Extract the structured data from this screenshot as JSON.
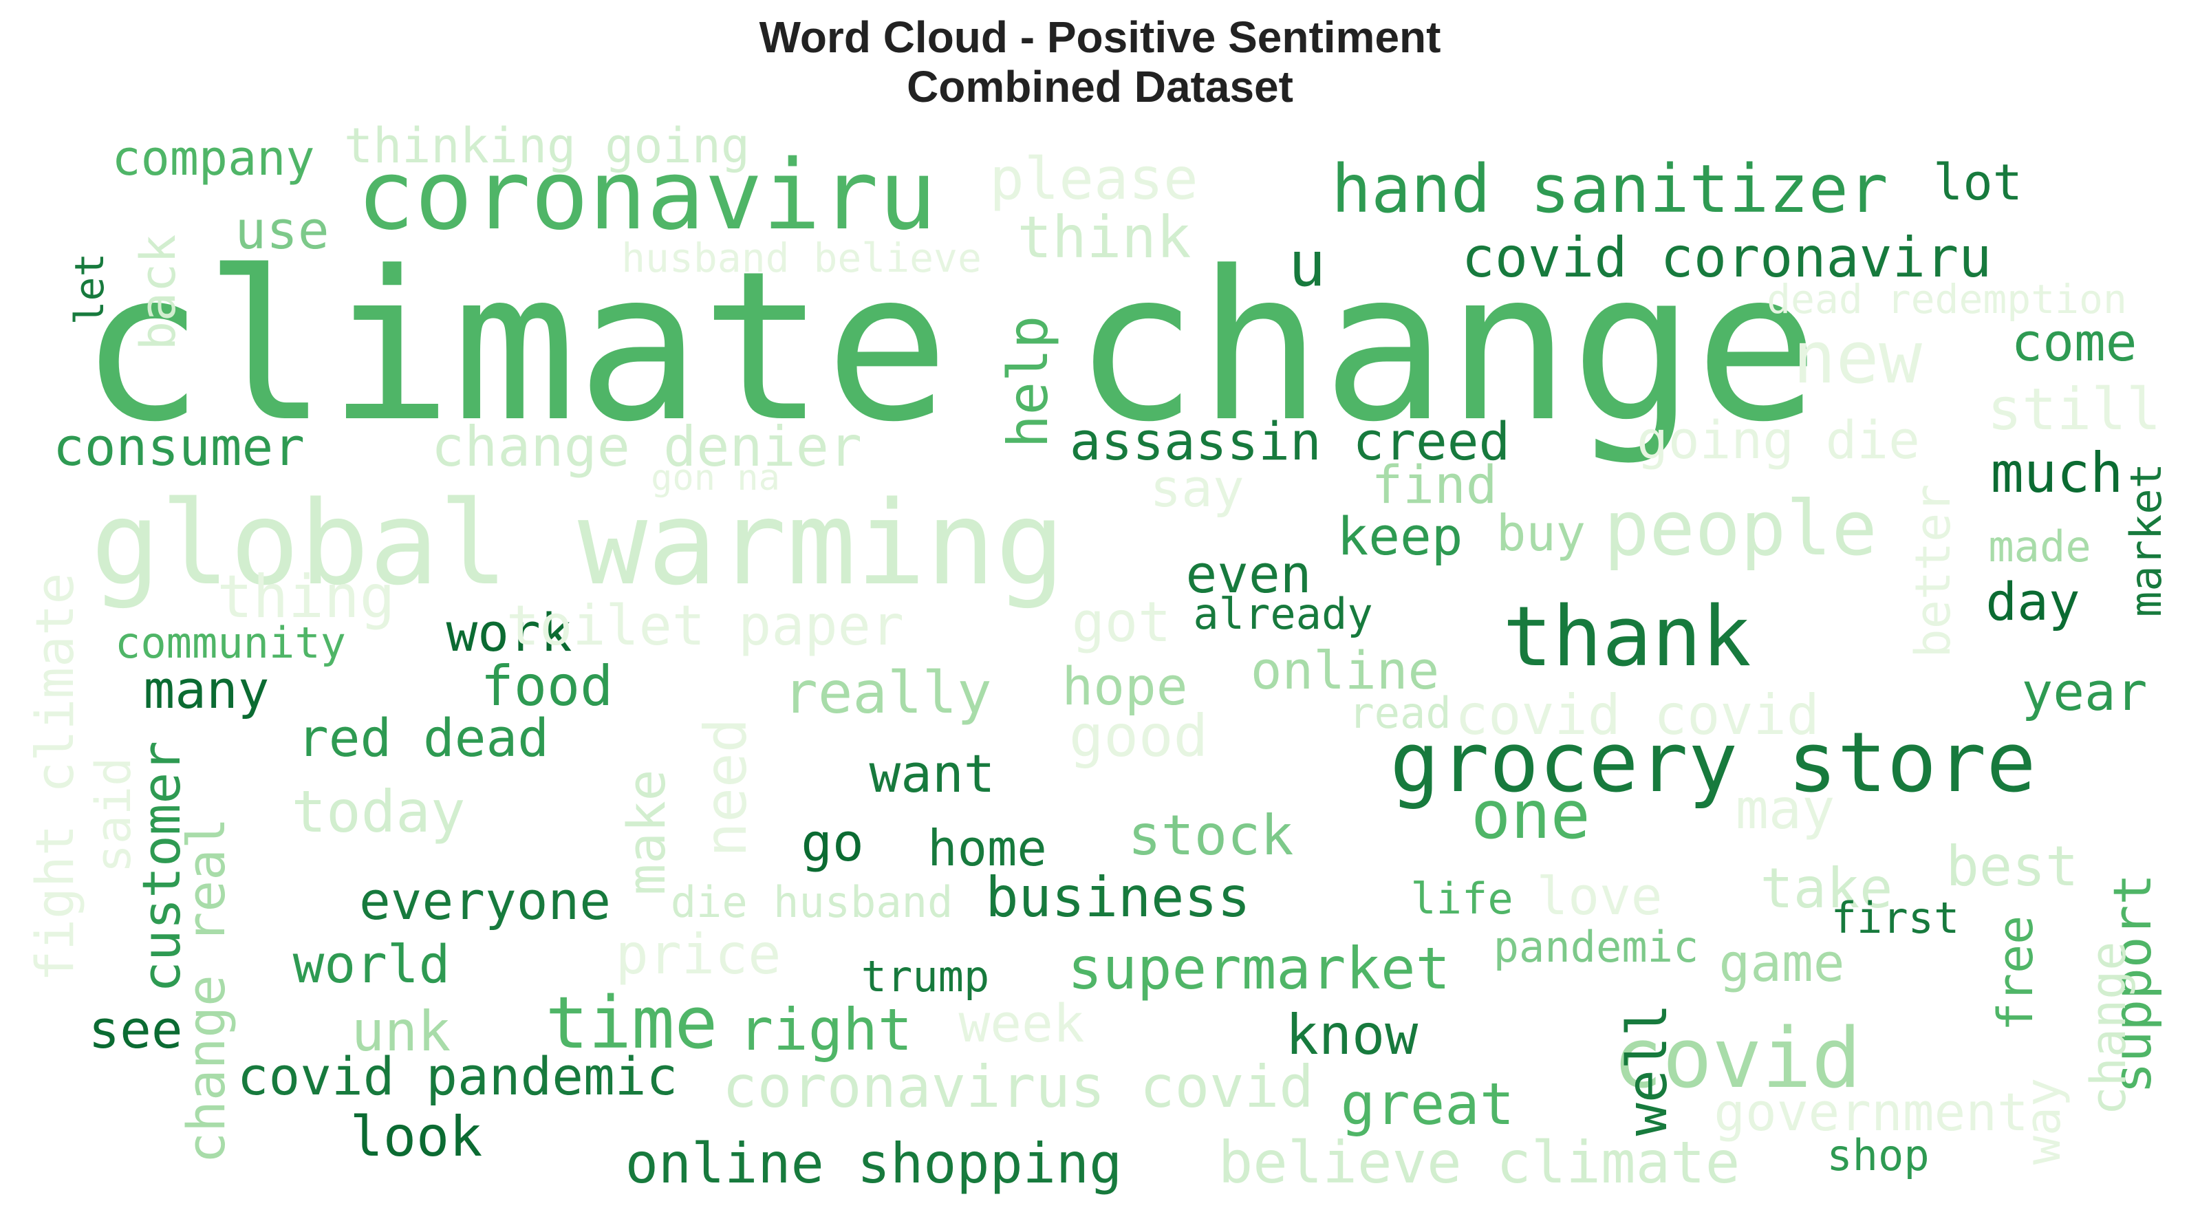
{
  "title": {
    "line1": "Word Cloud - Positive Sentiment",
    "line2": "Combined Dataset"
  },
  "palette": {
    "darkest": "#0b6b32",
    "dark": "#177a3d",
    "mid": "#2e9a52",
    "medium": "#4fb567",
    "light": "#7dc98a",
    "lighter": "#a8dca9",
    "lightest": "#d2eecf",
    "faint": "#e6f5e1"
  },
  "words": [
    {
      "text": "climate change",
      "color": "#4fb567"
    },
    {
      "text": "coronaviru",
      "color": "#4fb567"
    },
    {
      "text": "global warming",
      "color": "#d2eecf"
    },
    {
      "text": "grocery store",
      "color": "#177a3d"
    },
    {
      "text": "company",
      "color": "#4fb567"
    },
    {
      "text": "thinking going",
      "color": "#d2eecf"
    },
    {
      "text": "please",
      "color": "#e6f5e1"
    },
    {
      "text": "hand sanitizer",
      "color": "#2e9a52"
    },
    {
      "text": "lot",
      "color": "#177a3d"
    },
    {
      "text": "use",
      "color": "#7dc98a"
    },
    {
      "text": "think",
      "color": "#d2eecf"
    },
    {
      "text": "husband believe",
      "color": "#e6f5e1"
    },
    {
      "text": "u",
      "color": "#177a3d"
    },
    {
      "text": "covid coronaviru",
      "color": "#177a3d"
    },
    {
      "text": "dead redemption",
      "color": "#e6f5e1"
    },
    {
      "text": "back",
      "color": "#d2eecf"
    },
    {
      "text": "let",
      "color": "#177a3d"
    },
    {
      "text": "new",
      "color": "#e6f5e1"
    },
    {
      "text": "come",
      "color": "#2e9a52"
    },
    {
      "text": "still",
      "color": "#e6f5e1"
    },
    {
      "text": "help",
      "color": "#4fb567"
    },
    {
      "text": "consumer",
      "color": "#2e9a52"
    },
    {
      "text": "change denier",
      "color": "#d2eecf"
    },
    {
      "text": "assassin creed",
      "color": "#177a3d"
    },
    {
      "text": "going die",
      "color": "#e6f5e1"
    },
    {
      "text": "gon na",
      "color": "#e6f5e1"
    },
    {
      "text": "say",
      "color": "#e6f5e1"
    },
    {
      "text": "find",
      "color": "#a8dca9"
    },
    {
      "text": "much",
      "color": "#0b6b32"
    },
    {
      "text": "keep",
      "color": "#2e9a52"
    },
    {
      "text": "buy",
      "color": "#a8dca9"
    },
    {
      "text": "people",
      "color": "#d2eecf"
    },
    {
      "text": "made",
      "color": "#a8dca9"
    },
    {
      "text": "market",
      "color": "#177a3d"
    },
    {
      "text": "better",
      "color": "#e6f5e1"
    },
    {
      "text": "thing",
      "color": "#e6f5e1"
    },
    {
      "text": "even",
      "color": "#177a3d"
    },
    {
      "text": "day",
      "color": "#0b6b32"
    },
    {
      "text": "already",
      "color": "#177a3d"
    },
    {
      "text": "community",
      "color": "#4fb567"
    },
    {
      "text": "work",
      "color": "#0b6b32"
    },
    {
      "text": "toilet paper",
      "color": "#e6f5e1"
    },
    {
      "text": "got",
      "color": "#e6f5e1"
    },
    {
      "text": "thank",
      "color": "#177a3d"
    },
    {
      "text": "fight climate",
      "color": "#e6f5e1"
    },
    {
      "text": "many",
      "color": "#0b6b32"
    },
    {
      "text": "food",
      "color": "#2e9a52"
    },
    {
      "text": "really",
      "color": "#a8dca9"
    },
    {
      "text": "hope",
      "color": "#a8dca9"
    },
    {
      "text": "online",
      "color": "#a8dca9"
    },
    {
      "text": "year",
      "color": "#2e9a52"
    },
    {
      "text": "red dead",
      "color": "#2e9a52"
    },
    {
      "text": "read",
      "color": "#d2eecf"
    },
    {
      "text": "covid covid",
      "color": "#e6f5e1"
    },
    {
      "text": "good",
      "color": "#e6f5e1"
    },
    {
      "text": "said",
      "color": "#e6f5e1"
    },
    {
      "text": "customer",
      "color": "#2e9a52"
    },
    {
      "text": "need",
      "color": "#e6f5e1"
    },
    {
      "text": "make",
      "color": "#d2eecf"
    },
    {
      "text": "want",
      "color": "#177a3d"
    },
    {
      "text": "today",
      "color": "#d2eecf"
    },
    {
      "text": "change real",
      "color": "#a8dca9"
    },
    {
      "text": "one",
      "color": "#4fb567"
    },
    {
      "text": "may",
      "color": "#e6f5e1"
    },
    {
      "text": "go",
      "color": "#0b6b32"
    },
    {
      "text": "home",
      "color": "#177a3d"
    },
    {
      "text": "stock",
      "color": "#7dc98a"
    },
    {
      "text": "best",
      "color": "#d2eecf"
    },
    {
      "text": "everyone",
      "color": "#177a3d"
    },
    {
      "text": "die husband",
      "color": "#d2eecf"
    },
    {
      "text": "business",
      "color": "#177a3d"
    },
    {
      "text": "life",
      "color": "#4fb567"
    },
    {
      "text": "love",
      "color": "#e6f5e1"
    },
    {
      "text": "take",
      "color": "#d2eecf"
    },
    {
      "text": "first",
      "color": "#177a3d"
    },
    {
      "text": "support",
      "color": "#4fb567"
    },
    {
      "text": "free",
      "color": "#4fb567"
    },
    {
      "text": "world",
      "color": "#2e9a52"
    },
    {
      "text": "price",
      "color": "#e6f5e1"
    },
    {
      "text": "trump",
      "color": "#177a3d"
    },
    {
      "text": "supermarket",
      "color": "#4fb567"
    },
    {
      "text": "pandemic",
      "color": "#7dc98a"
    },
    {
      "text": "game",
      "color": "#a8dca9"
    },
    {
      "text": "see",
      "color": "#0b6b32"
    },
    {
      "text": "unk",
      "color": "#a8dca9"
    },
    {
      "text": "time",
      "color": "#4fb567"
    },
    {
      "text": "right",
      "color": "#4fb567"
    },
    {
      "text": "week",
      "color": "#e6f5e1"
    },
    {
      "text": "know",
      "color": "#177a3d"
    },
    {
      "text": "covid",
      "color": "#a8dca9"
    },
    {
      "text": "well",
      "color": "#177a3d"
    },
    {
      "text": "way",
      "color": "#e6f5e1"
    },
    {
      "text": "change",
      "color": "#d2eecf"
    },
    {
      "text": "covid pandemic",
      "color": "#177a3d"
    },
    {
      "text": "coronavirus covid",
      "color": "#d2eecf"
    },
    {
      "text": "great",
      "color": "#4fb567"
    },
    {
      "text": "government",
      "color": "#e6f5e1"
    },
    {
      "text": "look",
      "color": "#0b6b32"
    },
    {
      "text": "online shopping",
      "color": "#177a3d"
    },
    {
      "text": "believe climate",
      "color": "#d2eecf"
    },
    {
      "text": "shop",
      "color": "#2e9a52"
    }
  ]
}
